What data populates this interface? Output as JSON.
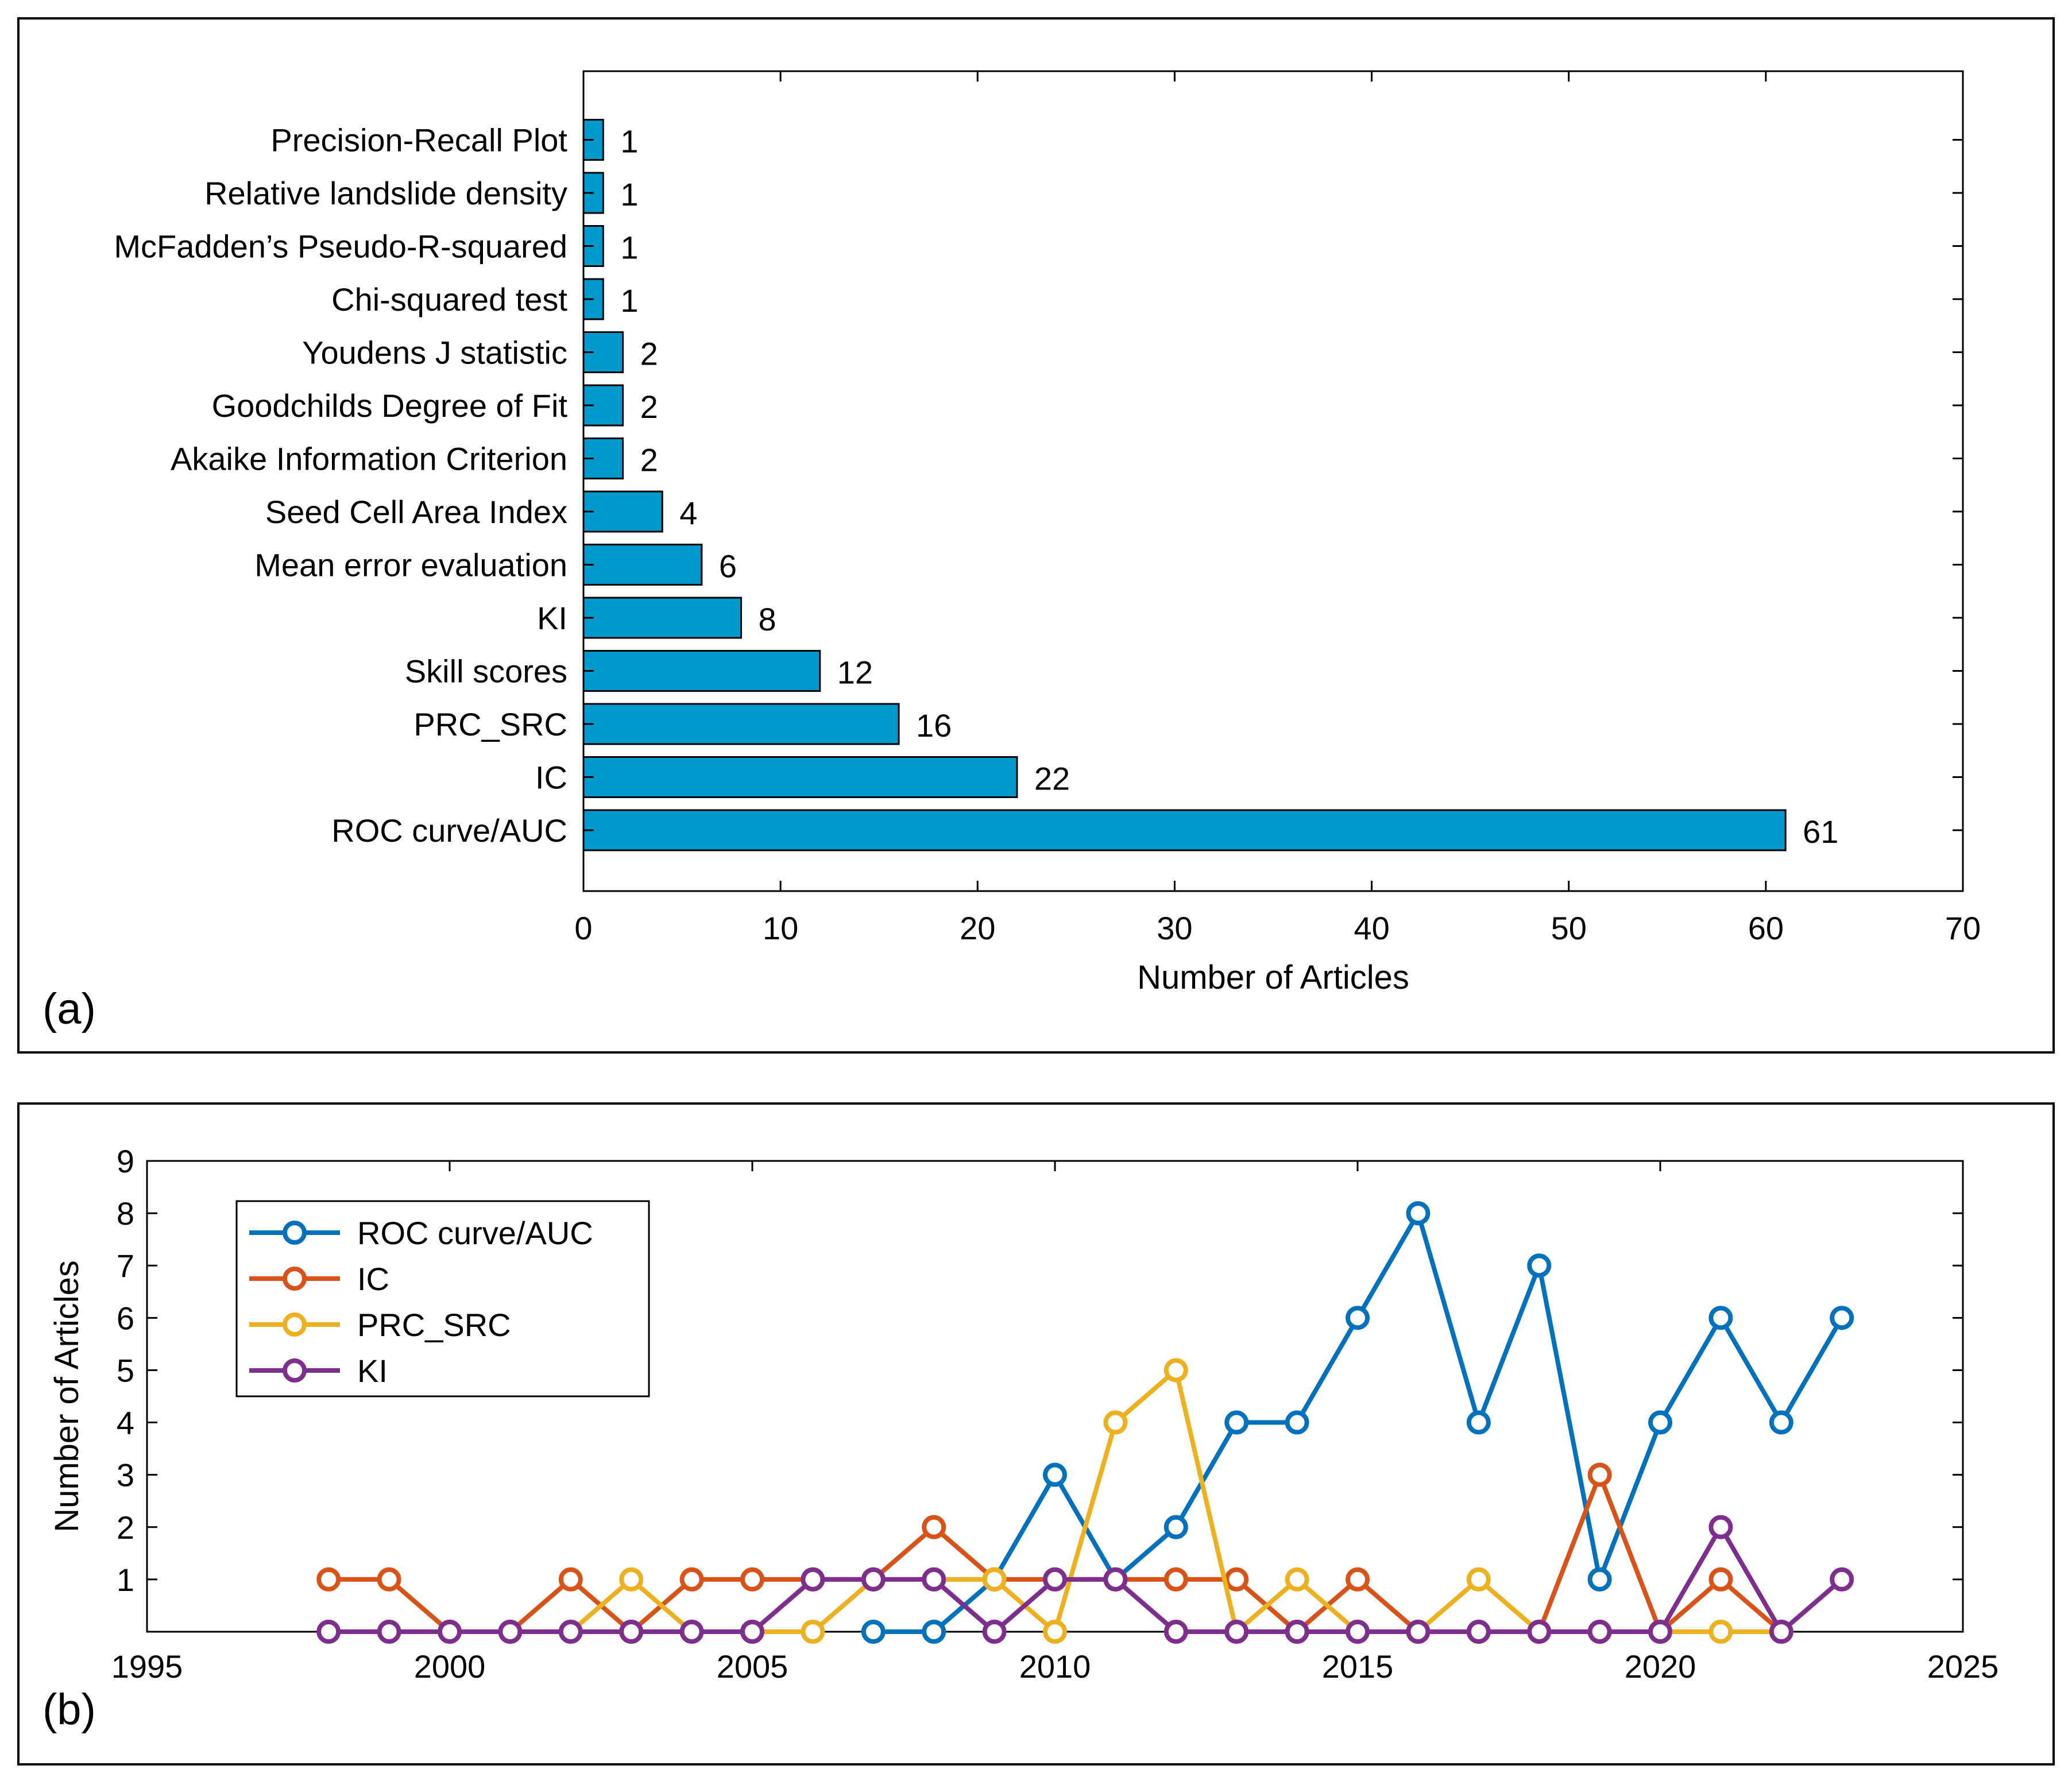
{
  "chart_data": [
    {
      "panel": "(a)",
      "type": "bar",
      "orientation": "horizontal",
      "xlabel": "Number of Articles",
      "xlim": [
        0,
        70
      ],
      "xticks": [
        0,
        10,
        20,
        30,
        40,
        50,
        60,
        70
      ],
      "color": "#0099CC",
      "categories": [
        "ROC curve/AUC",
        "IC",
        "PRC_SRC",
        "Skill scores",
        "KI",
        "Mean error evaluation",
        "Seed Cell Area Index",
        "Akaike Information Criterion",
        "Goodchilds Degree of Fit",
        "Youdens J statistic",
        "Chi-squared test",
        "McFadden’s Pseudo-R-squared",
        "Relative landslide density",
        "Precision-Recall Plot"
      ],
      "values": [
        61,
        22,
        16,
        12,
        8,
        6,
        4,
        2,
        2,
        2,
        1,
        1,
        1,
        1
      ]
    },
    {
      "panel": "(b)",
      "type": "line",
      "ylabel": "Number of Articles",
      "xlim": [
        1995,
        2025
      ],
      "ylim": [
        0,
        9
      ],
      "xticks": [
        1995,
        2000,
        2005,
        2010,
        2015,
        2020,
        2025
      ],
      "yticks": [
        1,
        2,
        3,
        4,
        5,
        6,
        7,
        8,
        9
      ],
      "legend_position": "top-left",
      "series": [
        {
          "name": "ROC curve/AUC",
          "color": "#0072BD",
          "x": [
            2007,
            2008,
            2009,
            2010,
            2011,
            2012,
            2013,
            2014,
            2015,
            2016,
            2017,
            2018,
            2019,
            2020,
            2021,
            2022,
            2023
          ],
          "values": [
            0,
            0,
            1,
            3,
            1,
            2,
            4,
            4,
            6,
            8,
            4,
            7,
            1,
            4,
            6,
            4,
            6
          ]
        },
        {
          "name": "IC",
          "color": "#D95319",
          "x": [
            1998,
            1999,
            2000,
            2001,
            2002,
            2003,
            2004,
            2005,
            2006,
            2007,
            2008,
            2009,
            2010,
            2011,
            2012,
            2013,
            2014,
            2015,
            2016,
            2017,
            2018,
            2019,
            2020,
            2021,
            2022
          ],
          "values": [
            1,
            1,
            0,
            0,
            1,
            0,
            1,
            1,
            1,
            1,
            2,
            1,
            1,
            1,
            1,
            1,
            0,
            1,
            0,
            0,
            0,
            3,
            0,
            1,
            0
          ]
        },
        {
          "name": "PRC_SRC",
          "color": "#EDB120",
          "x": [
            2002,
            2003,
            2004,
            2005,
            2006,
            2007,
            2008,
            2009,
            2010,
            2011,
            2012,
            2013,
            2014,
            2015,
            2016,
            2017,
            2018,
            2019,
            2020,
            2021,
            2022
          ],
          "values": [
            0,
            1,
            0,
            0,
            0,
            1,
            1,
            1,
            0,
            4,
            5,
            0,
            1,
            0,
            0,
            1,
            0,
            0,
            0,
            0,
            0
          ]
        },
        {
          "name": "KI",
          "color": "#7E2F8E",
          "x": [
            1998,
            1999,
            2000,
            2001,
            2002,
            2003,
            2004,
            2005,
            2006,
            2007,
            2008,
            2009,
            2010,
            2011,
            2012,
            2013,
            2014,
            2015,
            2016,
            2017,
            2018,
            2019,
            2020,
            2021,
            2022,
            2023
          ],
          "values": [
            0,
            0,
            0,
            0,
            0,
            0,
            0,
            0,
            1,
            1,
            1,
            0,
            1,
            1,
            0,
            0,
            0,
            0,
            0,
            0,
            0,
            0,
            0,
            2,
            0,
            1
          ]
        }
      ]
    }
  ]
}
